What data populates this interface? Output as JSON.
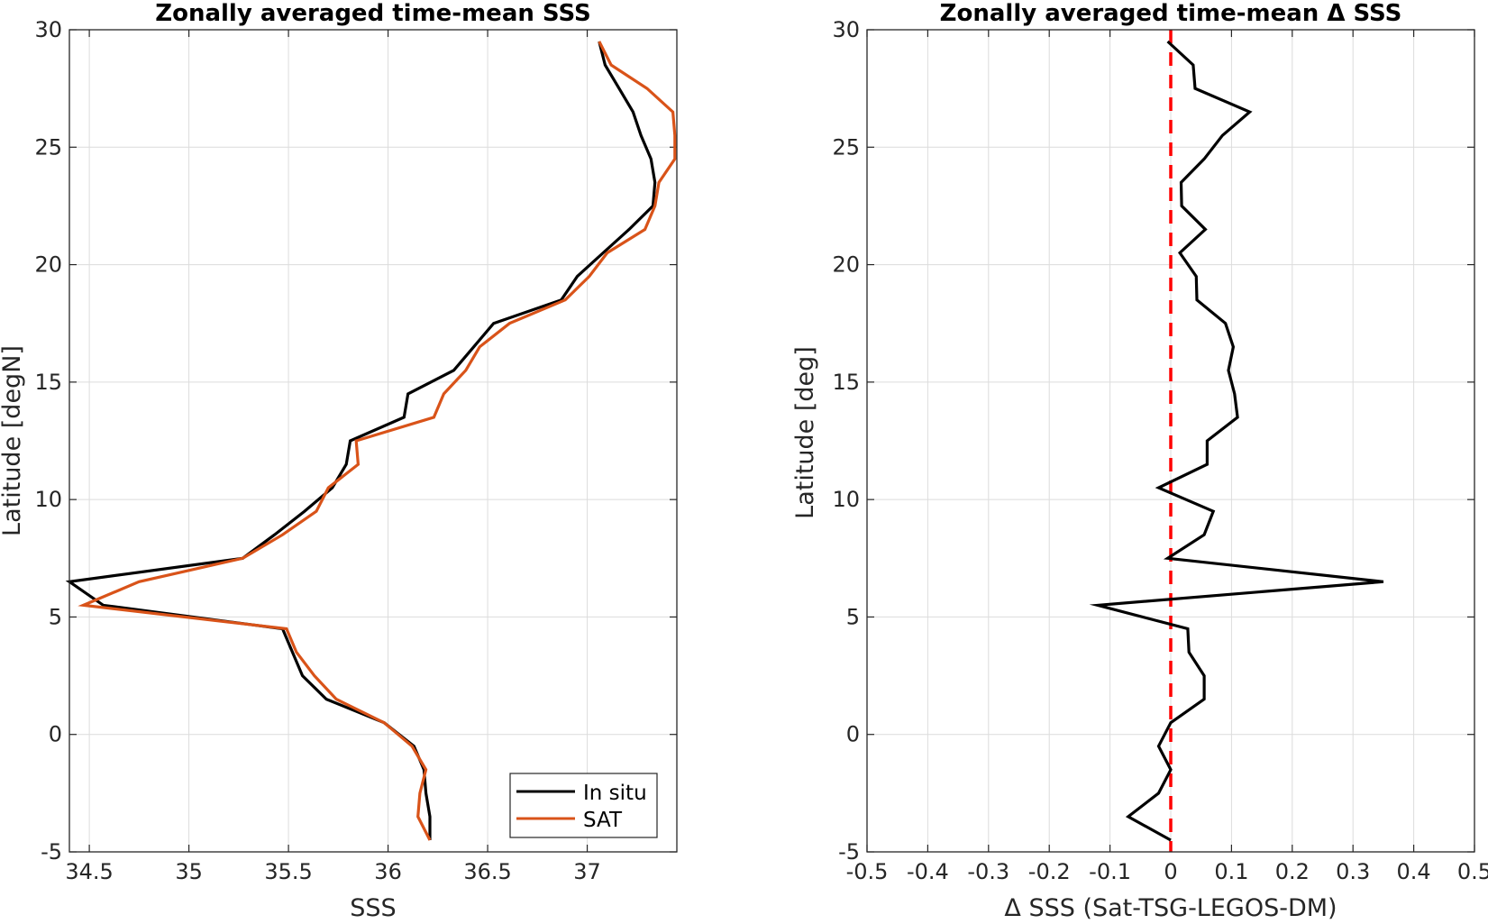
{
  "chart_data": [
    {
      "type": "line",
      "title": "Zonally averaged time-mean SSS",
      "xlabel": "SSS",
      "ylabel": "Latitude [degN]",
      "xlim": [
        34.4,
        37.45
      ],
      "ylim": [
        -5,
        30
      ],
      "xticks": [
        34.5,
        35,
        35.5,
        36,
        36.5,
        37
      ],
      "xtick_labels": [
        "34.5",
        "35",
        "35.5",
        "36",
        "36.5",
        "37"
      ],
      "yticks": [
        -5,
        0,
        5,
        10,
        15,
        20,
        25,
        30
      ],
      "ytick_labels": [
        "-5",
        "0",
        "5",
        "10",
        "15",
        "20",
        "25",
        "30"
      ],
      "grid": true,
      "legend_position": "bottom-right",
      "series": [
        {
          "name": "In situ",
          "color": "#000000",
          "lat": [
            -4.5,
            -3.5,
            -2.5,
            -1.5,
            -0.5,
            0.5,
            1.5,
            2.5,
            3.5,
            4.5,
            5.5,
            6.5,
            7.5,
            8.5,
            9.5,
            10.5,
            11.5,
            12.5,
            13.5,
            14.5,
            15.5,
            16.5,
            17.5,
            18.5,
            19.5,
            20.5,
            21.5,
            22.5,
            23.5,
            24.5,
            25.5,
            26.5,
            27.5,
            28.5,
            29.5
          ],
          "sss": [
            36.21,
            36.21,
            36.19,
            36.18,
            36.13,
            35.98,
            35.69,
            35.57,
            35.52,
            35.47,
            34.57,
            34.4,
            35.27,
            35.43,
            35.58,
            35.72,
            35.79,
            35.81,
            36.08,
            36.1,
            36.33,
            36.43,
            36.53,
            36.87,
            36.95,
            37.08,
            37.21,
            37.33,
            37.34,
            37.32,
            37.27,
            37.23,
            37.16,
            37.09,
            37.06
          ]
        },
        {
          "name": "SAT",
          "color": "#D95319",
          "lat": [
            -4.5,
            -3.5,
            -2.5,
            -1.5,
            -0.5,
            0.5,
            1.5,
            2.5,
            3.5,
            4.5,
            5.5,
            6.5,
            7.5,
            8.5,
            9.5,
            10.5,
            11.5,
            12.5,
            13.5,
            14.5,
            15.5,
            16.5,
            17.5,
            18.5,
            19.5,
            20.5,
            21.5,
            22.5,
            23.5,
            24.5,
            25.5,
            26.5,
            27.5,
            28.5,
            29.5
          ],
          "sss": [
            36.21,
            36.15,
            36.16,
            36.19,
            36.12,
            35.98,
            35.74,
            35.63,
            35.54,
            35.49,
            34.47,
            34.75,
            35.27,
            35.47,
            35.64,
            35.7,
            35.85,
            35.84,
            36.23,
            36.28,
            36.39,
            36.46,
            36.61,
            36.89,
            37.01,
            37.1,
            37.29,
            37.34,
            37.36,
            37.44,
            37.44,
            37.43,
            37.3,
            37.12,
            37.06
          ]
        }
      ]
    },
    {
      "type": "line",
      "title": "Zonally averaged time-mean Δ SSS",
      "xlabel": "Δ SSS (Sat-TSG-LEGOS-DM)",
      "ylabel": "Latitude [deg]",
      "xlim": [
        -0.5,
        0.5
      ],
      "ylim": [
        -5,
        30
      ],
      "xticks": [
        -0.5,
        -0.4,
        -0.3,
        -0.2,
        -0.1,
        0,
        0.1,
        0.2,
        0.3,
        0.4,
        0.5
      ],
      "xtick_labels": [
        "-0.5",
        "-0.4",
        "-0.3",
        "-0.2",
        "-0.1",
        "0",
        "0.1",
        "0.2",
        "0.3",
        "0.4",
        "0.5"
      ],
      "yticks": [
        -5,
        0,
        5,
        10,
        15,
        20,
        25,
        30
      ],
      "ytick_labels": [
        "-5",
        "0",
        "5",
        "10",
        "15",
        "20",
        "25",
        "30"
      ],
      "grid": true,
      "reference_line": {
        "x": 0,
        "color": "#FF0000",
        "style": "dashed"
      },
      "series": [
        {
          "color": "#000000",
          "lat": [
            -4.5,
            -3.5,
            -2.5,
            -1.5,
            -0.5,
            0.5,
            1.5,
            2.5,
            3.5,
            4.5,
            5.5,
            6.5,
            7.5,
            8.5,
            9.5,
            10.5,
            11.5,
            12.5,
            13.5,
            14.5,
            15.5,
            16.5,
            17.5,
            18.5,
            19.5,
            20.5,
            21.5,
            22.5,
            23.5,
            24.5,
            25.5,
            26.5,
            27.5,
            28.5,
            29.5
          ],
          "dsss": [
            0.0,
            -0.07,
            -0.02,
            0.0,
            -0.02,
            0.0,
            0.055,
            0.055,
            0.03,
            0.028,
            -0.12,
            0.35,
            -0.005,
            0.055,
            0.07,
            -0.02,
            0.06,
            0.06,
            0.11,
            0.105,
            0.095,
            0.103,
            0.09,
            0.043,
            0.042,
            0.015,
            0.057,
            0.018,
            0.017,
            0.055,
            0.085,
            0.13,
            0.04,
            0.037,
            -0.005
          ]
        }
      ]
    }
  ]
}
